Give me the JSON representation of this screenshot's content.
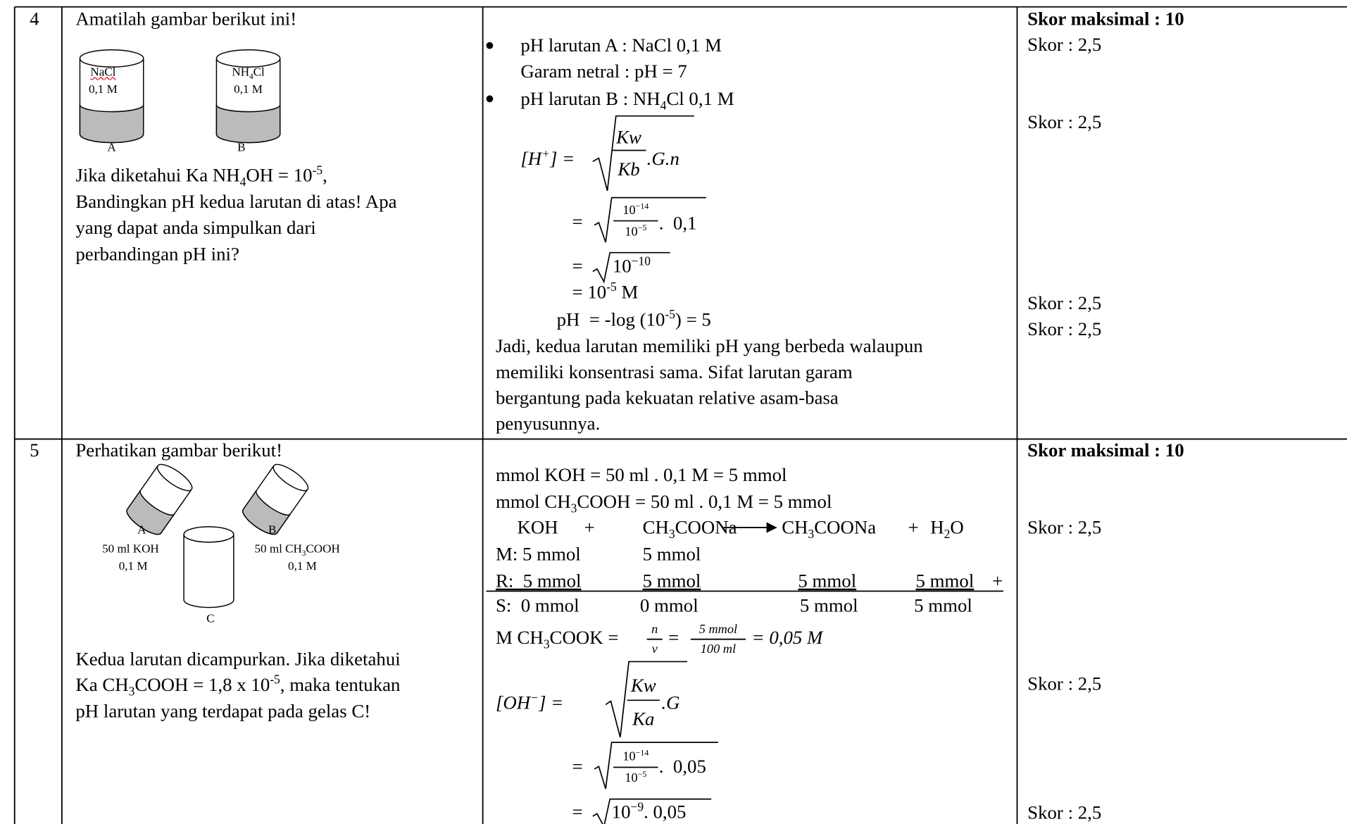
{
  "table": {
    "rows": [
      {
        "number": "4",
        "question": {
          "intro": "Amatilah gambar berikut ini!",
          "figure": {
            "beaker_a": {
              "label": "NaCl",
              "concentration": "0,1 M",
              "name": "A"
            },
            "beaker_b": {
              "label": [
                "NH",
                {
                  "sub": "4"
                },
                "Cl"
              ],
              "concentration": "0,1 M",
              "name": "B"
            }
          },
          "text": [
            [
              "Jika diketahui Ka NH",
              {
                "sub": "4"
              },
              "OH = 10",
              {
                "sup": "-5"
              },
              ","
            ],
            "Bandingkan pH kedua larutan di atas! Apa",
            "yang dapat anda simpulkan dari",
            "perbandingan pH ini?"
          ]
        },
        "answer": {
          "bullets": [
            [
              "pH larutan A : NaCl 0,1 M",
              "Garam netral : pH = 7"
            ],
            [
              [
                "pH larutan B : NH",
                {
                  "sub": "4"
                },
                "Cl 0,1 M"
              ]
            ]
          ],
          "formula": {
            "lhs": [
              "[H",
              {
                "sup": "+"
              },
              "] ="
            ],
            "step1": {
              "num": "Kw",
              "den": "Kb",
              "rest": ".G.n"
            },
            "step2": {
              "eq": "=",
              "num": [
                "10",
                {
                  "sup": "−14"
                }
              ],
              "den": [
                "10",
                {
                  "sup": "−5"
                }
              ],
              "rest": ".  0,1"
            },
            "step3": {
              "eq": "=",
              "radicand": [
                "10",
                {
                  "sup": "−10"
                }
              ]
            },
            "step4": [
              "= 10",
              {
                "sup": "-5"
              },
              " M"
            ],
            "ph": [
              "pH  = -log (10",
              {
                "sup": "-5"
              },
              ") = 5"
            ]
          },
          "conclusion": [
            "Jadi, kedua larutan memiliki pH yang berbeda walaupun",
            "memiliki konsentrasi sama. Sifat larutan garam",
            "bergantung pada kekuatan relative asam-basa",
            "penyusunnya."
          ]
        },
        "scores": {
          "max": "Skor maksimal : 10",
          "items": [
            "Skor : 2,5",
            "Skor : 2,5",
            "Skor : 2,5",
            "Skor : 2,5"
          ]
        }
      },
      {
        "number": "5",
        "question": {
          "intro": "Perhatikan gambar berikut!",
          "figure": {
            "beaker_a": {
              "name": "A",
              "volume": "50 ml KOH",
              "concentration": "0,1 M"
            },
            "beaker_b": {
              "name": "B",
              "volume": [
                "50 ml CH",
                {
                  "sub": "3"
                },
                "COOH"
              ],
              "concentration": "0,1 M"
            },
            "beaker_c": {
              "name": "C"
            }
          },
          "text": [
            "Kedua larutan dicampurkan. Jika diketahui",
            [
              "Ka CH",
              {
                "sub": "3"
              },
              "COOH = 1,8 x 10",
              {
                "sup": "-5"
              },
              ", maka tentukan"
            ],
            "pH larutan yang terdapat pada gelas C!"
          ]
        },
        "answer": {
          "mmol": [
            "mmol KOH = 50 ml . 0,1 M = 5 mmol",
            [
              "mmol CH",
              {
                "sub": "3"
              },
              "COOH = 50 ml . 0,1 M = 5 mmol"
            ]
          ],
          "reaction": {
            "reactants": [
              "KOH",
              "+",
              [
                "CH",
                {
                  "sub": "3"
                },
                "COONa"
              ]
            ],
            "products": [
              [
                "CH",
                {
                  "sub": "3"
                },
                "COONa"
              ],
              "+",
              [
                "H",
                {
                  "sub": "2"
                },
                "O"
              ]
            ]
          },
          "mrs": [
            [
              "M: 5 mmol",
              "5 mmol"
            ],
            [
              "R:  5 mmol",
              "5 mmol",
              "5 mmol",
              "5 mmol"
            ],
            [
              "S:  0 mmol",
              "0 mmol",
              "5 mmol",
              "5 mmol"
            ]
          ],
          "plus": "+",
          "molarity": {
            "lhs": [
              "M CH",
              {
                "sub": "3"
              },
              "COOK ="
            ],
            "n": "n",
            "v": "v",
            "eq": "=",
            "num": "5 mmol",
            "den": "100 ml",
            "result": "= 0,05 M"
          },
          "formula": {
            "lhs": [
              "[OH",
              {
                "sup": "−"
              },
              "] ="
            ],
            "step1": {
              "num": "Kw",
              "den": "Ka",
              "rest": ".G"
            },
            "step2": {
              "eq": "=",
              "num": [
                "10",
                {
                  "sup": "−14"
                }
              ],
              "den": [
                "10",
                {
                  "sup": "−5"
                }
              ],
              "rest": ".  0,05"
            },
            "step3": {
              "eq": "=",
              "radicand": [
                "10",
                {
                  "sup": "−9"
                },
                ". 0,05"
              ]
            }
          }
        },
        "scores": {
          "max": "Skor maksimal : 10",
          "items": [
            "Skor : 2,5",
            "Skor : 2,5",
            "Skor : 2,5"
          ]
        }
      }
    ]
  }
}
